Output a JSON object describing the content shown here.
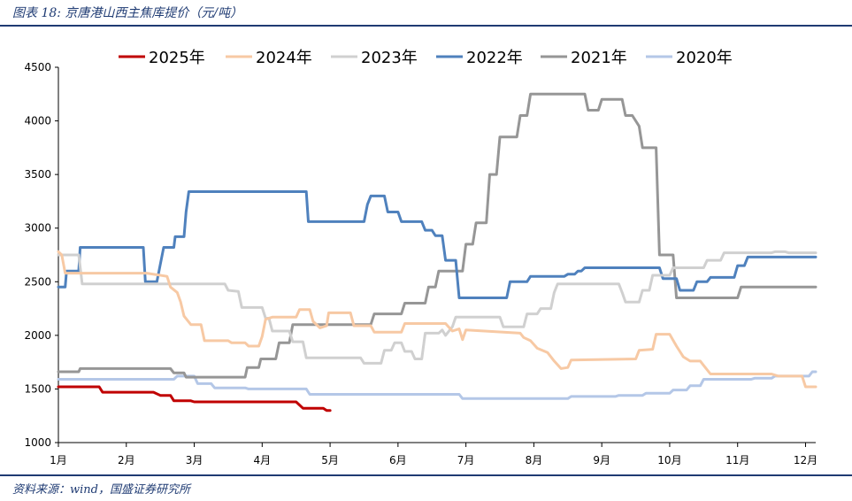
{
  "header": {
    "title": "图表 18:  京唐港山西主焦库提价（元/吨）"
  },
  "footer": {
    "source": "资料来源：wind，国盛证券研究所"
  },
  "chart_data": {
    "type": "line",
    "title": "图表 18:  京唐港山西主焦库提价（元/吨）",
    "xlabel": "",
    "ylabel": "",
    "x_unit": "month",
    "xlim": [
      1,
      12.15
    ],
    "ylim": [
      1000,
      4500
    ],
    "y_ticks": [
      1000,
      1500,
      2000,
      2500,
      3000,
      3500,
      4000,
      4500
    ],
    "x_ticks": [
      {
        "pos": 1,
        "label": "1月"
      },
      {
        "pos": 2,
        "label": "2月"
      },
      {
        "pos": 3,
        "label": "3月"
      },
      {
        "pos": 4,
        "label": "4月"
      },
      {
        "pos": 5,
        "label": "5月"
      },
      {
        "pos": 6,
        "label": "6月"
      },
      {
        "pos": 7,
        "label": "7月"
      },
      {
        "pos": 8,
        "label": "8月"
      },
      {
        "pos": 9,
        "label": "9月"
      },
      {
        "pos": 10,
        "label": "10月"
      },
      {
        "pos": 11,
        "label": "11月"
      },
      {
        "pos": 12,
        "label": "12月"
      }
    ],
    "grid": false,
    "legend_position": "top",
    "series": [
      {
        "name": "2025年",
        "color": "#c00000",
        "points": [
          [
            1,
            1520
          ],
          [
            1.6,
            1520
          ],
          [
            1.65,
            1470
          ],
          [
            2.4,
            1470
          ],
          [
            2.5,
            1440
          ],
          [
            2.65,
            1440
          ],
          [
            2.7,
            1390
          ],
          [
            2.95,
            1390
          ],
          [
            3.0,
            1380
          ],
          [
            4.5,
            1380
          ],
          [
            4.6,
            1320
          ],
          [
            4.9,
            1320
          ],
          [
            4.95,
            1300
          ],
          [
            5.0,
            1300
          ]
        ]
      },
      {
        "name": "2024年",
        "color": "#f7c9a4",
        "points": [
          [
            1,
            2780
          ],
          [
            1.05,
            2750
          ],
          [
            1.1,
            2580
          ],
          [
            2.3,
            2580
          ],
          [
            2.6,
            2550
          ],
          [
            2.65,
            2450
          ],
          [
            2.75,
            2400
          ],
          [
            2.8,
            2310
          ],
          [
            2.85,
            2180
          ],
          [
            2.95,
            2100
          ],
          [
            3.1,
            2100
          ],
          [
            3.15,
            1950
          ],
          [
            3.5,
            1950
          ],
          [
            3.55,
            1930
          ],
          [
            3.75,
            1930
          ],
          [
            3.8,
            1900
          ],
          [
            3.95,
            1900
          ],
          [
            4.0,
            1990
          ],
          [
            4.05,
            2150
          ],
          [
            4.15,
            2170
          ],
          [
            4.5,
            2170
          ],
          [
            4.55,
            2240
          ],
          [
            4.7,
            2240
          ],
          [
            4.75,
            2130
          ],
          [
            4.85,
            2070
          ],
          [
            4.95,
            2090
          ],
          [
            4.98,
            2210
          ],
          [
            5.3,
            2210
          ],
          [
            5.35,
            2090
          ],
          [
            5.6,
            2090
          ],
          [
            5.65,
            2030
          ],
          [
            6.05,
            2030
          ],
          [
            6.1,
            2110
          ],
          [
            6.7,
            2110
          ],
          [
            6.8,
            2040
          ],
          [
            6.9,
            2060
          ],
          [
            6.95,
            1960
          ],
          [
            7.0,
            2050
          ],
          [
            7.8,
            2020
          ],
          [
            7.85,
            1980
          ],
          [
            7.95,
            1950
          ],
          [
            8.05,
            1880
          ],
          [
            8.2,
            1840
          ],
          [
            8.3,
            1760
          ],
          [
            8.4,
            1690
          ],
          [
            8.5,
            1700
          ],
          [
            8.55,
            1770
          ],
          [
            9.5,
            1780
          ],
          [
            9.55,
            1860
          ],
          [
            9.75,
            1870
          ],
          [
            9.8,
            2010
          ],
          [
            10.0,
            2010
          ],
          [
            10.1,
            1900
          ],
          [
            10.2,
            1800
          ],
          [
            10.3,
            1760
          ],
          [
            10.45,
            1760
          ],
          [
            10.5,
            1720
          ],
          [
            10.6,
            1640
          ],
          [
            11.5,
            1640
          ],
          [
            11.6,
            1620
          ],
          [
            11.95,
            1620
          ],
          [
            12.0,
            1520
          ],
          [
            12.15,
            1520
          ]
        ]
      },
      {
        "name": "2023年",
        "color": "#d0d0d0",
        "points": [
          [
            1,
            2750
          ],
          [
            1.3,
            2750
          ],
          [
            1.35,
            2480
          ],
          [
            3.45,
            2480
          ],
          [
            3.5,
            2420
          ],
          [
            3.65,
            2410
          ],
          [
            3.7,
            2260
          ],
          [
            4.0,
            2260
          ],
          [
            4.05,
            2160
          ],
          [
            4.1,
            2160
          ],
          [
            4.15,
            2040
          ],
          [
            4.4,
            2040
          ],
          [
            4.45,
            1940
          ],
          [
            4.6,
            1940
          ],
          [
            4.65,
            1790
          ],
          [
            5.45,
            1790
          ],
          [
            5.5,
            1740
          ],
          [
            5.75,
            1740
          ],
          [
            5.8,
            1860
          ],
          [
            5.9,
            1860
          ],
          [
            5.95,
            1930
          ],
          [
            6.05,
            1930
          ],
          [
            6.1,
            1850
          ],
          [
            6.2,
            1850
          ],
          [
            6.25,
            1780
          ],
          [
            6.35,
            1780
          ],
          [
            6.4,
            2020
          ],
          [
            6.6,
            2020
          ],
          [
            6.65,
            2050
          ],
          [
            6.7,
            2000
          ],
          [
            6.8,
            2080
          ],
          [
            6.85,
            2170
          ],
          [
            7.5,
            2170
          ],
          [
            7.55,
            2080
          ],
          [
            7.85,
            2080
          ],
          [
            7.9,
            2200
          ],
          [
            8.05,
            2200
          ],
          [
            8.1,
            2250
          ],
          [
            8.25,
            2250
          ],
          [
            8.3,
            2400
          ],
          [
            8.35,
            2480
          ],
          [
            9.25,
            2480
          ],
          [
            9.3,
            2400
          ],
          [
            9.35,
            2310
          ],
          [
            9.55,
            2310
          ],
          [
            9.6,
            2420
          ],
          [
            9.7,
            2420
          ],
          [
            9.75,
            2560
          ],
          [
            10.0,
            2560
          ],
          [
            10.05,
            2630
          ],
          [
            10.5,
            2630
          ],
          [
            10.55,
            2700
          ],
          [
            10.75,
            2700
          ],
          [
            10.8,
            2770
          ],
          [
            11.5,
            2770
          ],
          [
            11.55,
            2780
          ],
          [
            11.7,
            2780
          ],
          [
            11.75,
            2770
          ],
          [
            12.15,
            2770
          ]
        ]
      },
      {
        "name": "2022年",
        "color": "#4f81bd",
        "points": [
          [
            1,
            2450
          ],
          [
            1.1,
            2450
          ],
          [
            1.12,
            2600
          ],
          [
            1.3,
            2600
          ],
          [
            1.32,
            2820
          ],
          [
            2.25,
            2820
          ],
          [
            2.28,
            2500
          ],
          [
            2.45,
            2500
          ],
          [
            2.55,
            2820
          ],
          [
            2.7,
            2820
          ],
          [
            2.72,
            2920
          ],
          [
            2.85,
            2920
          ],
          [
            2.88,
            3150
          ],
          [
            2.92,
            3340
          ],
          [
            4.65,
            3340
          ],
          [
            4.68,
            3060
          ],
          [
            5.5,
            3060
          ],
          [
            5.55,
            3220
          ],
          [
            5.6,
            3300
          ],
          [
            5.8,
            3300
          ],
          [
            5.85,
            3150
          ],
          [
            6.0,
            3150
          ],
          [
            6.05,
            3060
          ],
          [
            6.35,
            3060
          ],
          [
            6.4,
            2980
          ],
          [
            6.5,
            2980
          ],
          [
            6.55,
            2930
          ],
          [
            6.65,
            2930
          ],
          [
            6.7,
            2700
          ],
          [
            6.85,
            2700
          ],
          [
            6.9,
            2350
          ],
          [
            7.6,
            2350
          ],
          [
            7.65,
            2500
          ],
          [
            7.9,
            2500
          ],
          [
            7.95,
            2550
          ],
          [
            8.45,
            2550
          ],
          [
            8.5,
            2570
          ],
          [
            8.6,
            2570
          ],
          [
            8.65,
            2600
          ],
          [
            8.7,
            2600
          ],
          [
            8.75,
            2630
          ],
          [
            9.85,
            2630
          ],
          [
            9.9,
            2530
          ],
          [
            10.1,
            2530
          ],
          [
            10.15,
            2420
          ],
          [
            10.35,
            2420
          ],
          [
            10.4,
            2500
          ],
          [
            10.55,
            2500
          ],
          [
            10.6,
            2540
          ],
          [
            10.95,
            2540
          ],
          [
            11.0,
            2650
          ],
          [
            11.1,
            2650
          ],
          [
            11.15,
            2730
          ],
          [
            12.15,
            2730
          ]
        ]
      },
      {
        "name": "2021年",
        "color": "#969696",
        "points": [
          [
            1,
            1660
          ],
          [
            1.3,
            1660
          ],
          [
            1.32,
            1690
          ],
          [
            2.65,
            1690
          ],
          [
            2.7,
            1650
          ],
          [
            2.85,
            1650
          ],
          [
            2.88,
            1610
          ],
          [
            3.75,
            1610
          ],
          [
            3.78,
            1700
          ],
          [
            3.95,
            1700
          ],
          [
            3.98,
            1780
          ],
          [
            4.2,
            1780
          ],
          [
            4.25,
            1930
          ],
          [
            4.4,
            1930
          ],
          [
            4.45,
            2100
          ],
          [
            5.6,
            2100
          ],
          [
            5.65,
            2200
          ],
          [
            6.05,
            2200
          ],
          [
            6.1,
            2300
          ],
          [
            6.4,
            2300
          ],
          [
            6.45,
            2450
          ],
          [
            6.55,
            2450
          ],
          [
            6.6,
            2600
          ],
          [
            6.95,
            2600
          ],
          [
            7.0,
            2850
          ],
          [
            7.1,
            2850
          ],
          [
            7.15,
            3050
          ],
          [
            7.3,
            3050
          ],
          [
            7.35,
            3500
          ],
          [
            7.45,
            3500
          ],
          [
            7.5,
            3850
          ],
          [
            7.75,
            3850
          ],
          [
            7.8,
            4050
          ],
          [
            7.9,
            4050
          ],
          [
            7.95,
            4250
          ],
          [
            8.75,
            4250
          ],
          [
            8.8,
            4100
          ],
          [
            8.95,
            4100
          ],
          [
            9.0,
            4200
          ],
          [
            9.3,
            4200
          ],
          [
            9.35,
            4050
          ],
          [
            9.45,
            4050
          ],
          [
            9.55,
            3950
          ],
          [
            9.6,
            3750
          ],
          [
            9.8,
            3750
          ],
          [
            9.85,
            2750
          ],
          [
            10.05,
            2750
          ],
          [
            10.1,
            2350
          ],
          [
            11.0,
            2350
          ],
          [
            11.05,
            2450
          ],
          [
            12.15,
            2450
          ]
        ]
      },
      {
        "name": "2020年",
        "color": "#b4c7e7",
        "points": [
          [
            1,
            1590
          ],
          [
            2.7,
            1590
          ],
          [
            2.75,
            1620
          ],
          [
            3.0,
            1620
          ],
          [
            3.05,
            1550
          ],
          [
            3.25,
            1550
          ],
          [
            3.3,
            1510
          ],
          [
            3.75,
            1510
          ],
          [
            3.8,
            1500
          ],
          [
            4.65,
            1500
          ],
          [
            4.7,
            1450
          ],
          [
            6.9,
            1450
          ],
          [
            6.95,
            1410
          ],
          [
            8.5,
            1410
          ],
          [
            8.55,
            1430
          ],
          [
            9.2,
            1430
          ],
          [
            9.25,
            1440
          ],
          [
            9.6,
            1440
          ],
          [
            9.65,
            1460
          ],
          [
            10.0,
            1460
          ],
          [
            10.05,
            1490
          ],
          [
            10.25,
            1490
          ],
          [
            10.3,
            1530
          ],
          [
            10.45,
            1530
          ],
          [
            10.5,
            1590
          ],
          [
            11.2,
            1590
          ],
          [
            11.25,
            1600
          ],
          [
            11.5,
            1600
          ],
          [
            11.55,
            1620
          ],
          [
            12.05,
            1620
          ],
          [
            12.1,
            1660
          ],
          [
            12.15,
            1660
          ]
        ]
      }
    ]
  }
}
